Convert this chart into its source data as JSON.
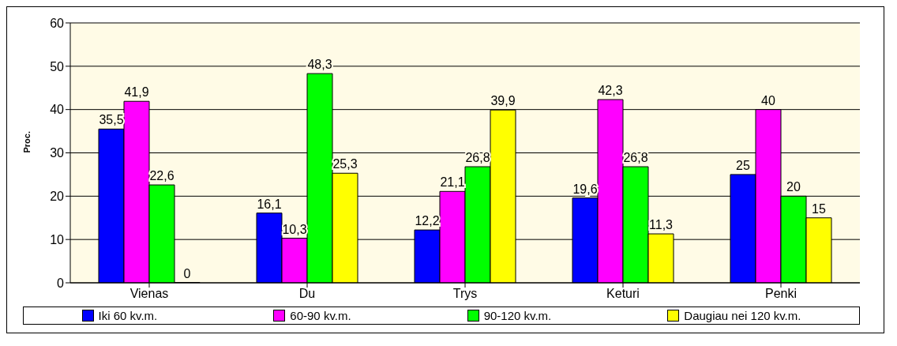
{
  "chart_data": {
    "type": "bar",
    "ylabel": "Proc.",
    "categories": [
      "Vienas",
      "Du",
      "Trys",
      "Keturi",
      "Penki"
    ],
    "series": [
      {
        "name": "Iki 60 kv.m.",
        "color": "#0000ff",
        "values": [
          35.5,
          16.1,
          12.2,
          19.6,
          25
        ],
        "value_labels": [
          "35,5",
          "16,1",
          "12,2",
          "19,6",
          "25"
        ]
      },
      {
        "name": "60-90 kv.m.",
        "color": "#ff00ff",
        "values": [
          41.9,
          10.3,
          21.1,
          42.3,
          40
        ],
        "value_labels": [
          "41,9",
          "10,3",
          "21,1",
          "42,3",
          "40"
        ]
      },
      {
        "name": "90-120 kv.m.",
        "color": "#00ff00",
        "values": [
          22.6,
          48.3,
          26.8,
          26.8,
          20
        ],
        "value_labels": [
          "22,6",
          "48,3",
          "26,8",
          "26,8",
          "20"
        ]
      },
      {
        "name": "Daugiau nei 120 kv.m.",
        "color": "#ffff00",
        "values": [
          0,
          25.3,
          39.9,
          11.3,
          15
        ],
        "value_labels": [
          "0",
          "25,3",
          "39,9",
          "11,3",
          "15"
        ]
      }
    ],
    "ylim": [
      0,
      60
    ],
    "yticks": [
      0,
      10,
      20,
      30,
      40,
      50,
      60
    ],
    "grid": "y",
    "legend": "bottom"
  }
}
